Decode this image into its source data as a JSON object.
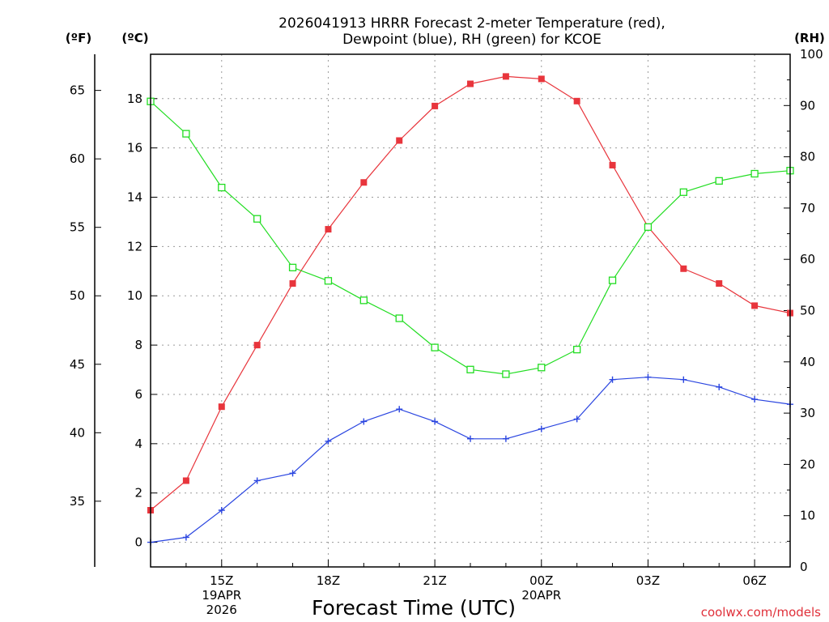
{
  "chart_data": {
    "type": "line",
    "title_lines": [
      "2026041913 HRRR Forecast 2-meter Temperature (red),",
      "Dewpoint (blue), RH (green) for KCOE"
    ],
    "xlabel": "Forecast Time (UTC)",
    "units": {
      "fahrenheit": "(ºF)",
      "celsius": "(ºC)",
      "rh": "(RH)"
    },
    "x_hours": [
      13,
      14,
      15,
      16,
      17,
      18,
      19,
      20,
      21,
      22,
      23,
      24,
      25,
      26,
      27,
      28,
      29,
      30,
      31
    ],
    "xlim": [
      13,
      31
    ],
    "x_ticks": [
      {
        "hour": 15,
        "lines": [
          "15Z",
          "19APR",
          "2026"
        ]
      },
      {
        "hour": 18,
        "lines": [
          "18Z"
        ]
      },
      {
        "hour": 21,
        "lines": [
          "21Z"
        ]
      },
      {
        "hour": 24,
        "lines": [
          "00Z",
          "20APR"
        ]
      },
      {
        "hour": 27,
        "lines": [
          "03Z"
        ]
      },
      {
        "hour": 30,
        "lines": [
          "06Z"
        ]
      }
    ],
    "y_celsius": {
      "lim": [
        -1,
        19.8
      ],
      "ticks": [
        0,
        2,
        4,
        6,
        8,
        10,
        12,
        14,
        16,
        18
      ]
    },
    "y_fahrenheit": {
      "ticks": [
        35,
        40,
        45,
        50,
        55,
        60,
        65
      ]
    },
    "y_rh": {
      "lim": [
        0,
        100
      ],
      "ticks": [
        0,
        10,
        20,
        30,
        40,
        50,
        60,
        70,
        80,
        90,
        100
      ]
    },
    "series": [
      {
        "name": "Temperature",
        "axis": "celsius",
        "color": "#e8353c",
        "marker": "filled-square",
        "values": [
          1.3,
          2.5,
          5.5,
          8.0,
          10.5,
          12.7,
          14.6,
          16.3,
          17.7,
          18.6,
          18.9,
          18.8,
          17.9,
          15.3,
          12.8,
          11.1,
          10.5,
          9.6,
          9.3
        ]
      },
      {
        "name": "Dewpoint",
        "axis": "celsius",
        "color": "#2a45e0",
        "marker": "plus",
        "values": [
          0.0,
          0.2,
          1.3,
          2.5,
          2.8,
          4.1,
          4.9,
          5.4,
          4.9,
          4.2,
          4.2,
          4.6,
          5.0,
          6.6,
          6.7,
          6.6,
          6.3,
          5.8,
          5.6
        ]
      },
      {
        "name": "RH",
        "axis": "rh",
        "color": "#22dd22",
        "marker": "open-square",
        "values": [
          90.8,
          84.5,
          74.0,
          67.9,
          58.4,
          55.8,
          52.0,
          48.5,
          42.8,
          38.5,
          37.6,
          38.9,
          42.4,
          55.9,
          66.3,
          73.1,
          75.3,
          76.7,
          77.3
        ]
      }
    ],
    "credit": "coolwx.com/models"
  }
}
